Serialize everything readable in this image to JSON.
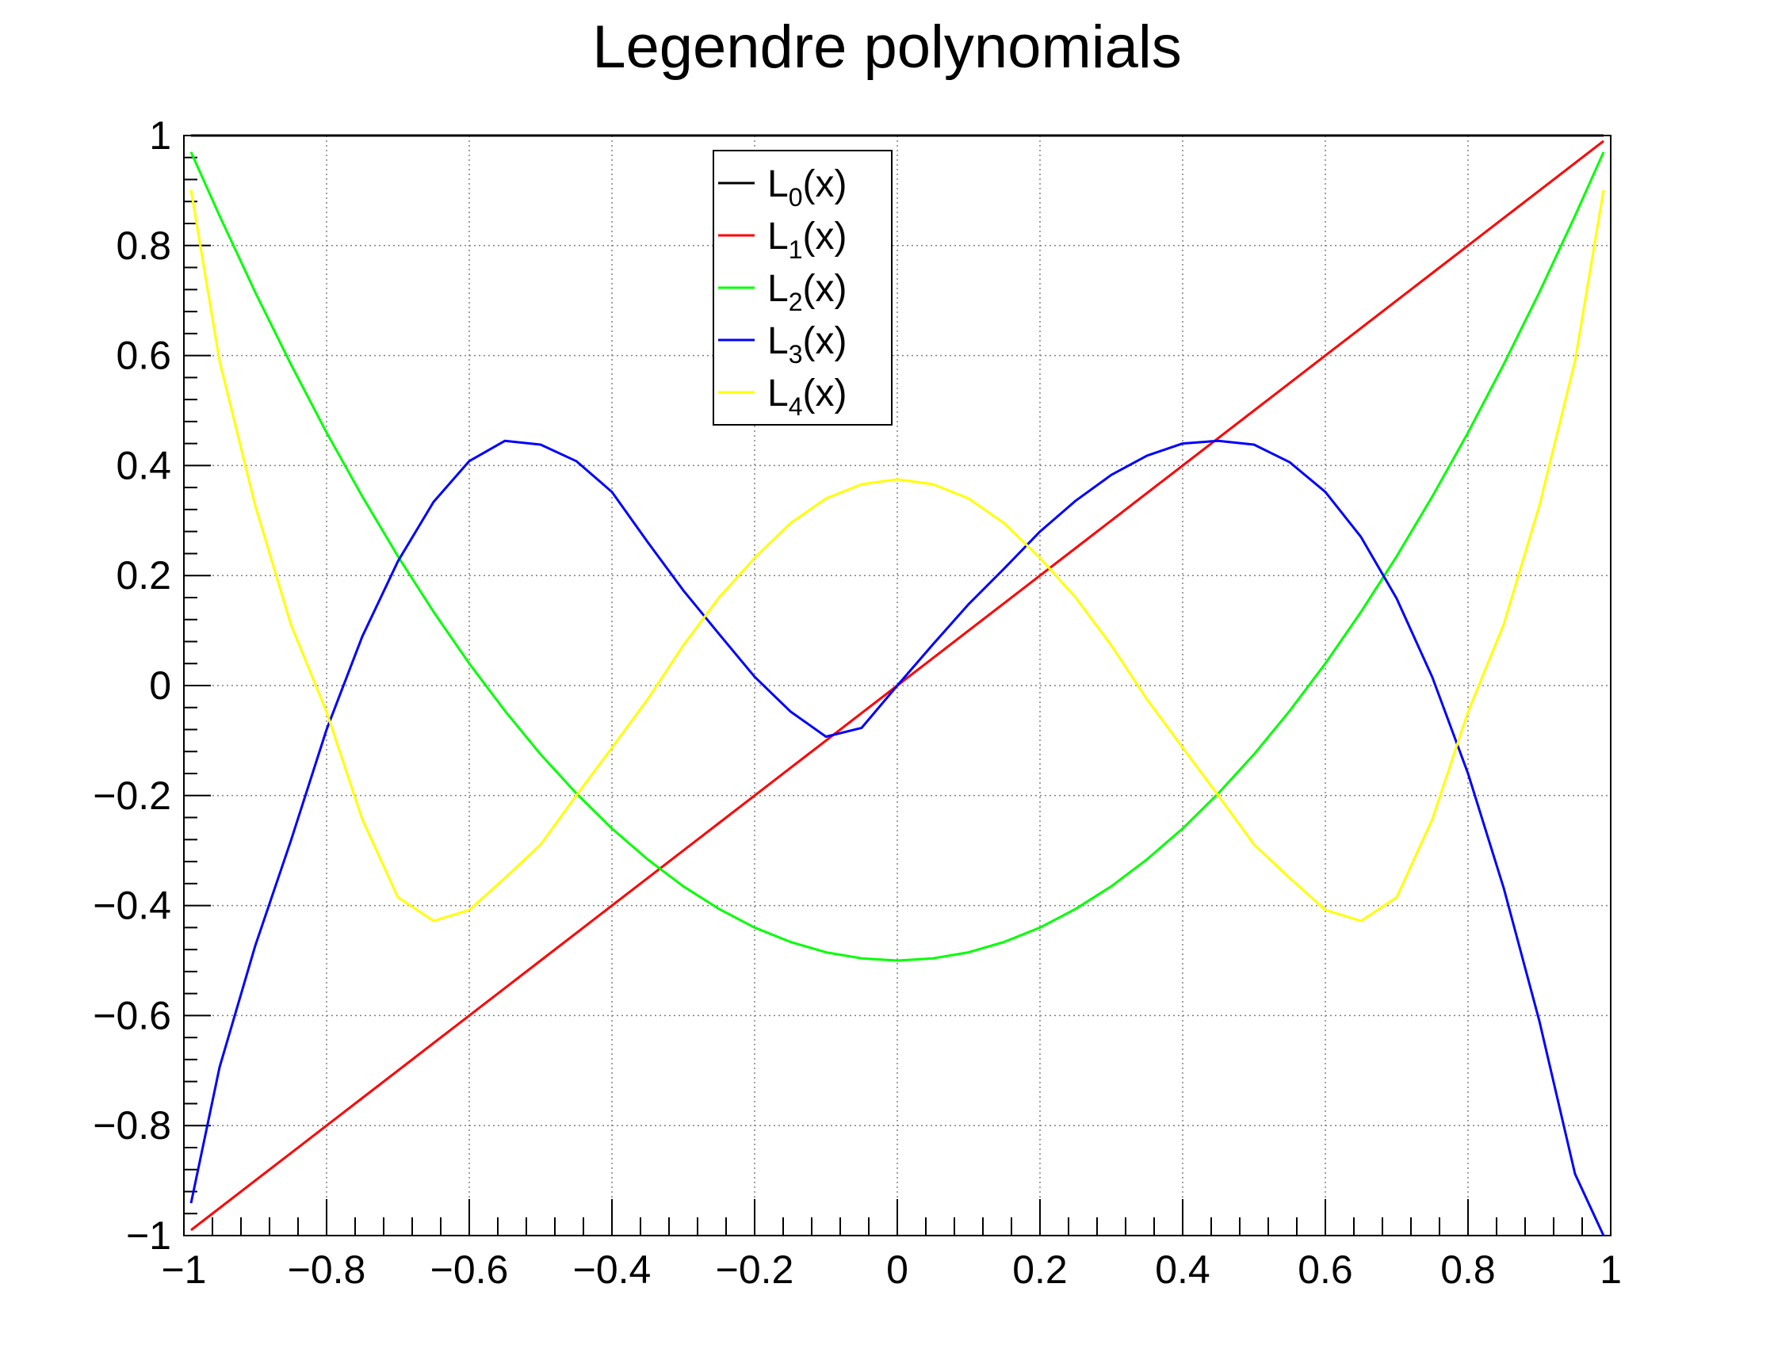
{
  "chart_data": {
    "type": "line",
    "title": "Legendre polynomials",
    "xlabel": "",
    "ylabel": "",
    "xlim": [
      -1,
      1
    ],
    "ylim": [
      -1,
      1
    ],
    "x_ticks": [
      -1,
      -0.8,
      -0.6,
      -0.4,
      -0.2,
      0,
      0.2,
      0.4,
      0.6,
      0.8,
      1
    ],
    "x_tick_labels": [
      "−1",
      "−0.8",
      "−0.6",
      "−0.4",
      "−0.2",
      "0",
      "0.2",
      "0.4",
      "0.6",
      "0.8",
      "1"
    ],
    "y_ticks": [
      -1,
      -0.8,
      -0.6,
      -0.4,
      -0.2,
      0,
      0.2,
      0.4,
      0.6,
      0.8,
      1
    ],
    "y_tick_labels": [
      "−1",
      "−0.8",
      "−0.6",
      "−0.4",
      "−0.2",
      "0",
      "0.2",
      "0.4",
      "0.6",
      "0.8",
      "1"
    ],
    "grid": true,
    "legend_position": "top-center",
    "x": [
      -0.99,
      -0.95,
      -0.9,
      -0.85,
      -0.8,
      -0.75,
      -0.7,
      -0.65,
      -0.6,
      -0.55,
      -0.5,
      -0.45,
      -0.4,
      -0.35,
      -0.3,
      -0.25,
      -0.2,
      -0.15,
      -0.1,
      -0.05,
      0,
      0.05,
      0.1,
      0.15,
      0.2,
      0.25,
      0.3,
      0.35,
      0.4,
      0.45,
      0.5,
      0.55,
      0.6,
      0.65,
      0.7,
      0.75,
      0.8,
      0.85,
      0.9,
      0.95,
      0.99
    ],
    "series": [
      {
        "name": "L",
        "subscript": "0",
        "suffix": "(x)",
        "color": "#000000",
        "values": [
          1,
          1,
          1,
          1,
          1,
          1,
          1,
          1,
          1,
          1,
          1,
          1,
          1,
          1,
          1,
          1,
          1,
          1,
          1,
          1,
          1,
          1,
          1,
          1,
          1,
          1,
          1,
          1,
          1,
          1,
          1,
          1,
          1,
          1,
          1,
          1,
          1,
          1,
          1,
          1,
          1
        ]
      },
      {
        "name": "L",
        "subscript": "1",
        "suffix": "(x)",
        "color": "#ff0000",
        "values": [
          -0.99,
          -0.95,
          -0.9,
          -0.85,
          -0.8,
          -0.75,
          -0.7,
          -0.65,
          -0.6,
          -0.55,
          -0.5,
          -0.45,
          -0.4,
          -0.35,
          -0.3,
          -0.25,
          -0.2,
          -0.15,
          -0.1,
          -0.05,
          0,
          0.05,
          0.1,
          0.15,
          0.2,
          0.25,
          0.3,
          0.35,
          0.4,
          0.45,
          0.5,
          0.55,
          0.6,
          0.65,
          0.7,
          0.75,
          0.8,
          0.85,
          0.9,
          0.95,
          0.99
        ]
      },
      {
        "name": "L",
        "subscript": "2",
        "suffix": "(x)",
        "color": "#00ff00",
        "values": [
          0.97,
          0.854,
          0.715,
          0.584,
          0.46,
          0.344,
          0.235,
          0.134,
          0.04,
          -0.046,
          -0.125,
          -0.196,
          -0.26,
          -0.316,
          -0.365,
          -0.406,
          -0.44,
          -0.466,
          -0.485,
          -0.496,
          -0.5,
          -0.496,
          -0.485,
          -0.466,
          -0.44,
          -0.406,
          -0.365,
          -0.316,
          -0.26,
          -0.196,
          -0.125,
          -0.046,
          0.04,
          0.134,
          0.235,
          0.344,
          0.46,
          0.584,
          0.715,
          0.854,
          0.97
        ]
      },
      {
        "name": "L",
        "subscript": "3",
        "suffix": "(x)",
        "color": "#0000ff",
        "values": [
          -0.941,
          -0.694,
          -0.473,
          -0.282,
          -0.08,
          0.089,
          0.226,
          0.334,
          0.408,
          0.445,
          0.438,
          0.408,
          0.352,
          0.261,
          0.173,
          0.094,
          0.016,
          -0.047,
          -0.093,
          -0.077,
          0,
          0.075,
          0.148,
          0.213,
          0.28,
          0.336,
          0.383,
          0.418,
          0.44,
          0.445,
          0.438,
          0.406,
          0.352,
          0.27,
          0.158,
          0.015,
          -0.16,
          -0.368,
          -0.61,
          -0.888,
          -1.0
        ]
      },
      {
        "name": "L",
        "subscript": "4",
        "suffix": "(x)",
        "color": "#ffff00",
        "values": [
          0.901,
          0.59,
          0.327,
          0.111,
          -0.048,
          -0.243,
          -0.385,
          -0.428,
          -0.408,
          -0.35,
          -0.289,
          -0.2,
          -0.113,
          -0.025,
          0.073,
          0.16,
          0.232,
          0.295,
          0.34,
          0.366,
          0.375,
          0.366,
          0.34,
          0.295,
          0.232,
          0.16,
          0.073,
          -0.025,
          -0.113,
          -0.2,
          -0.289,
          -0.35,
          -0.408,
          -0.428,
          -0.385,
          -0.243,
          -0.048,
          0.111,
          0.327,
          0.59,
          0.901
        ]
      }
    ]
  }
}
